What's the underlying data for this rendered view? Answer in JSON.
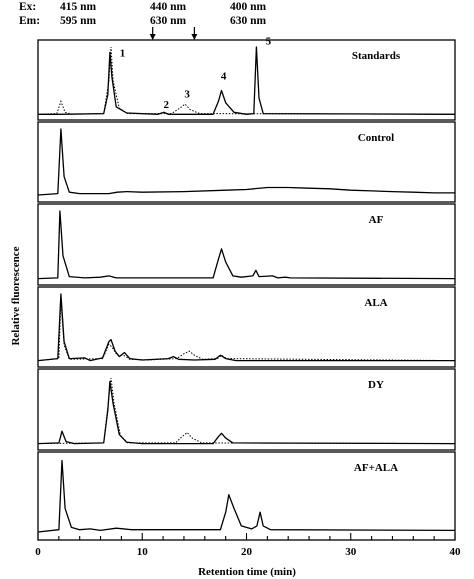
{
  "header": {
    "ex_label": "Ex:",
    "em_label": "Em:",
    "ex_values": [
      "415 nm",
      "440 nm",
      "400 nm"
    ],
    "em_values": [
      "595 nm",
      "630 nm",
      "630 nm"
    ],
    "switch_times": [
      11,
      15
    ]
  },
  "chart_data": {
    "type": "line",
    "xlabel": "Retention time (min)",
    "ylabel": "Relative fluorescence",
    "xlim": [
      0,
      40
    ],
    "xticks": [
      0,
      10,
      20,
      30,
      40
    ],
    "panels": [
      {
        "name": "Standards",
        "solid": [
          [
            0,
            0.01
          ],
          [
            2,
            0.01
          ],
          [
            6.3,
            0.02
          ],
          [
            6.7,
            0.3
          ],
          [
            6.9,
            0.92
          ],
          [
            7.1,
            0.55
          ],
          [
            7.5,
            0.12
          ],
          [
            8.5,
            0.03
          ],
          [
            11.5,
            0.01
          ],
          [
            12.1,
            0.04
          ],
          [
            12.5,
            0.01
          ],
          [
            16.8,
            0.01
          ],
          [
            17.3,
            0.2
          ],
          [
            17.6,
            0.36
          ],
          [
            18,
            0.18
          ],
          [
            18.8,
            0.04
          ],
          [
            20,
            0.01
          ],
          [
            20.7,
            0.02
          ],
          [
            20.95,
            1.0
          ],
          [
            21.2,
            0.25
          ],
          [
            21.6,
            0.02
          ],
          [
            40,
            0.01
          ]
        ],
        "dotted": [
          [
            0,
            0.01
          ],
          [
            1.8,
            0.02
          ],
          [
            2.2,
            0.2
          ],
          [
            2.6,
            0.04
          ],
          [
            3.2,
            0.01
          ],
          [
            6.3,
            0.02
          ],
          [
            6.8,
            0.5
          ],
          [
            7,
            1.0
          ],
          [
            7.2,
            0.5
          ],
          [
            7.8,
            0.1
          ],
          [
            8.6,
            0.02
          ],
          [
            12.8,
            0.02
          ],
          [
            13.6,
            0.1
          ],
          [
            14.1,
            0.16
          ],
          [
            14.6,
            0.08
          ],
          [
            15.5,
            0.02
          ],
          [
            40,
            0.01
          ]
        ],
        "peak_labels": [
          {
            "text": "1",
            "x": 8.1,
            "y": 0.86
          },
          {
            "text": "2",
            "x": 12.3,
            "y": 0.1
          },
          {
            "text": "3",
            "x": 14.3,
            "y": 0.26
          },
          {
            "text": "4",
            "x": 17.8,
            "y": 0.52
          },
          {
            "text": "5",
            "x": 22.1,
            "y": 1.04
          }
        ]
      },
      {
        "name": "Control",
        "solid": [
          [
            0,
            0.03
          ],
          [
            1.9,
            0.05
          ],
          [
            2.2,
            1.0
          ],
          [
            2.5,
            0.3
          ],
          [
            3,
            0.07
          ],
          [
            4,
            0.05
          ],
          [
            6,
            0.05
          ],
          [
            6.8,
            0.05
          ],
          [
            7.6,
            0.07
          ],
          [
            8.5,
            0.08
          ],
          [
            10,
            0.07
          ],
          [
            14,
            0.08
          ],
          [
            18,
            0.1
          ],
          [
            20,
            0.11
          ],
          [
            22,
            0.14
          ],
          [
            24,
            0.14
          ],
          [
            26,
            0.13
          ],
          [
            28,
            0.12
          ],
          [
            30,
            0.1
          ],
          [
            32,
            0.09
          ],
          [
            34,
            0.08
          ],
          [
            36,
            0.07
          ],
          [
            38,
            0.06
          ],
          [
            40,
            0.06
          ]
        ],
        "dotted": []
      },
      {
        "name": "AF",
        "solid": [
          [
            0,
            0.02
          ],
          [
            1.9,
            0.03
          ],
          [
            2.1,
            1.0
          ],
          [
            2.4,
            0.35
          ],
          [
            3,
            0.05
          ],
          [
            4.5,
            0.03
          ],
          [
            6,
            0.04
          ],
          [
            6.8,
            0.06
          ],
          [
            7.5,
            0.03
          ],
          [
            10,
            0.03
          ],
          [
            16.8,
            0.03
          ],
          [
            17.3,
            0.3
          ],
          [
            17.6,
            0.45
          ],
          [
            18,
            0.26
          ],
          [
            18.7,
            0.06
          ],
          [
            19.5,
            0.04
          ],
          [
            20.6,
            0.06
          ],
          [
            20.9,
            0.14
          ],
          [
            21.2,
            0.05
          ],
          [
            22.5,
            0.06
          ],
          [
            23,
            0.03
          ],
          [
            23.7,
            0.04
          ],
          [
            24.2,
            0.03
          ],
          [
            40,
            0.02
          ]
        ],
        "dotted": []
      },
      {
        "name": "ALA",
        "solid": [
          [
            0,
            0.02
          ],
          [
            1.9,
            0.05
          ],
          [
            2.2,
            1.0
          ],
          [
            2.5,
            0.3
          ],
          [
            3,
            0.05
          ],
          [
            4.5,
            0.06
          ],
          [
            5,
            0.02
          ],
          [
            6.2,
            0.06
          ],
          [
            6.8,
            0.3
          ],
          [
            7,
            0.33
          ],
          [
            7.4,
            0.16
          ],
          [
            7.8,
            0.08
          ],
          [
            8.3,
            0.14
          ],
          [
            8.8,
            0.05
          ],
          [
            10,
            0.03
          ],
          [
            12.5,
            0.05
          ],
          [
            13,
            0.08
          ],
          [
            13.5,
            0.04
          ],
          [
            15,
            0.03
          ],
          [
            17,
            0.04
          ],
          [
            17.5,
            0.1
          ],
          [
            18,
            0.05
          ],
          [
            19,
            0.02
          ],
          [
            40,
            0.02
          ]
        ],
        "dotted": [
          [
            0,
            0.02
          ],
          [
            2,
            0.05
          ],
          [
            2.2,
            0.9
          ],
          [
            2.5,
            0.25
          ],
          [
            3,
            0.04
          ],
          [
            6.2,
            0.05
          ],
          [
            6.8,
            0.26
          ],
          [
            7.1,
            0.22
          ],
          [
            7.6,
            0.1
          ],
          [
            8.2,
            0.1
          ],
          [
            8.8,
            0.04
          ],
          [
            10.5,
            0.03
          ],
          [
            13.3,
            0.05
          ],
          [
            14,
            0.12
          ],
          [
            14.5,
            0.16
          ],
          [
            15,
            0.1
          ],
          [
            15.8,
            0.04
          ],
          [
            17.2,
            0.05
          ],
          [
            17.6,
            0.1
          ],
          [
            18.1,
            0.05
          ],
          [
            40,
            0.02
          ]
        ]
      },
      {
        "name": "DY",
        "solid": [
          [
            0,
            0.02
          ],
          [
            2,
            0.03
          ],
          [
            2.3,
            0.2
          ],
          [
            2.7,
            0.05
          ],
          [
            3.5,
            0.02
          ],
          [
            6.3,
            0.03
          ],
          [
            6.7,
            0.5
          ],
          [
            6.9,
            0.92
          ],
          [
            7.2,
            0.6
          ],
          [
            7.8,
            0.15
          ],
          [
            8.5,
            0.04
          ],
          [
            10,
            0.02
          ],
          [
            16.8,
            0.02
          ],
          [
            17.3,
            0.12
          ],
          [
            17.6,
            0.17
          ],
          [
            18,
            0.1
          ],
          [
            18.7,
            0.03
          ],
          [
            40,
            0.02
          ]
        ],
        "dotted": [
          [
            0,
            0.02
          ],
          [
            6.3,
            0.03
          ],
          [
            6.7,
            0.55
          ],
          [
            7,
            0.97
          ],
          [
            7.3,
            0.6
          ],
          [
            7.9,
            0.14
          ],
          [
            8.6,
            0.03
          ],
          [
            13.2,
            0.03
          ],
          [
            13.8,
            0.12
          ],
          [
            14.3,
            0.18
          ],
          [
            14.8,
            0.1
          ],
          [
            15.7,
            0.03
          ],
          [
            40,
            0.02
          ]
        ]
      },
      {
        "name": "AF+ALA",
        "solid": [
          [
            0,
            0.04
          ],
          [
            2,
            0.07
          ],
          [
            2.3,
            0.98
          ],
          [
            2.6,
            0.35
          ],
          [
            3.2,
            0.1
          ],
          [
            4,
            0.07
          ],
          [
            5,
            0.08
          ],
          [
            6,
            0.06
          ],
          [
            7.5,
            0.09
          ],
          [
            9,
            0.07
          ],
          [
            10,
            0.07
          ],
          [
            12,
            0.07
          ],
          [
            17.5,
            0.07
          ],
          [
            18,
            0.3
          ],
          [
            18.3,
            0.53
          ],
          [
            18.8,
            0.35
          ],
          [
            19.5,
            0.12
          ],
          [
            20.5,
            0.08
          ],
          [
            21,
            0.12
          ],
          [
            21.3,
            0.3
          ],
          [
            21.6,
            0.12
          ],
          [
            22.3,
            0.07
          ],
          [
            40,
            0.06
          ]
        ],
        "dotted": []
      }
    ]
  }
}
